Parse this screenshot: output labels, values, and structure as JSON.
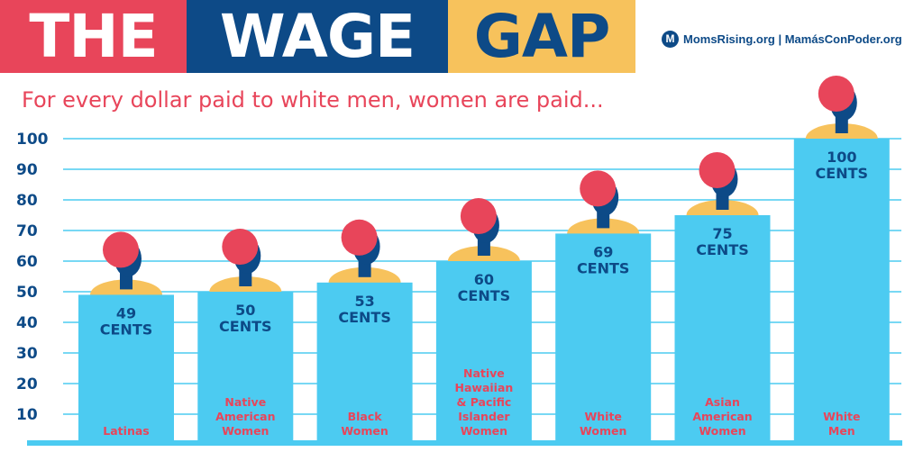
{
  "header": {
    "title_part1": "THE",
    "title_part2": "WAGE",
    "title_part3": "GAP",
    "brand": "MomsRising.org | MamásConPoder.org",
    "brand_logo_letter": "M"
  },
  "subtitle": "For every dollar paid to white men, women are paid...",
  "colors": {
    "red": "#e8455a",
    "navy": "#0d4a87",
    "yellow": "#f7c25c",
    "bar_blue": "#4ccbf1"
  },
  "chart_data": {
    "type": "bar",
    "title": "",
    "xlabel": "",
    "ylabel": "",
    "ylim": [
      0,
      100
    ],
    "yticks": [
      10,
      20,
      30,
      40,
      50,
      60,
      70,
      80,
      90,
      100
    ],
    "grid": true,
    "value_unit": "CENTS",
    "categories": [
      [
        "Latinas"
      ],
      [
        "Native",
        "American",
        "Women"
      ],
      [
        "Black",
        "Women"
      ],
      [
        "Native",
        "Hawaiian",
        "& Pacific",
        "Islander",
        "Women"
      ],
      [
        "White",
        "Women"
      ],
      [
        "Asian",
        "American",
        "Women"
      ],
      [
        "White",
        "Men"
      ]
    ],
    "values": [
      49,
      50,
      53,
      60,
      69,
      75,
      100
    ]
  }
}
